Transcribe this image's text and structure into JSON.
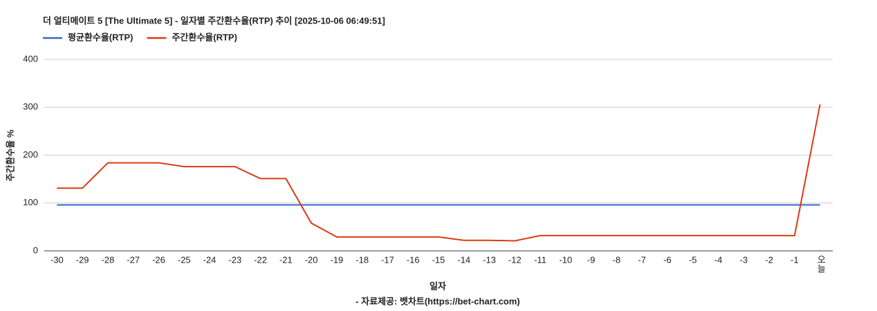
{
  "chart_data": {
    "type": "line",
    "title": "더 얼티메이트 5 [The Ultimate 5] - 일자별 주간환수율(RTP) 추이 [2025-10-06 06:49:51]",
    "x_label": "일자",
    "y_label": "주간환수율 %",
    "source": "- 자료제공: 벳차트(https://bet-chart.com)",
    "categories": [
      "-30",
      "-29",
      "-28",
      "-27",
      "-26",
      "-25",
      "-24",
      "-23",
      "-22",
      "-21",
      "-20",
      "-19",
      "-18",
      "-17",
      "-16",
      "-15",
      "-14",
      "-13",
      "-12",
      "-11",
      "-10",
      "-9",
      "-8",
      "-7",
      "-6",
      "-5",
      "-4",
      "-3",
      "-2",
      "-1",
      "오늘"
    ],
    "series": [
      {
        "name": "평균환수율(RTP)",
        "color": "#3366cc",
        "values": [
          96,
          96,
          96,
          96,
          96,
          96,
          96,
          96,
          96,
          96,
          96,
          96,
          96,
          96,
          96,
          96,
          96,
          96,
          96,
          96,
          96,
          96,
          96,
          96,
          96,
          96,
          96,
          96,
          96,
          96,
          96
        ]
      },
      {
        "name": "주간환수율(RTP)",
        "color": "#dc3912",
        "values": [
          131,
          131,
          184,
          184,
          184,
          176,
          176,
          176,
          151,
          151,
          58,
          29,
          29,
          29,
          29,
          29,
          22,
          22,
          21,
          32,
          32,
          32,
          32,
          32,
          32,
          32,
          32,
          32,
          32,
          32,
          306
        ]
      }
    ],
    "ylim": [
      0,
      400
    ],
    "yticks": [
      0,
      100,
      200,
      300,
      400
    ],
    "grid": true,
    "legend": "top"
  }
}
